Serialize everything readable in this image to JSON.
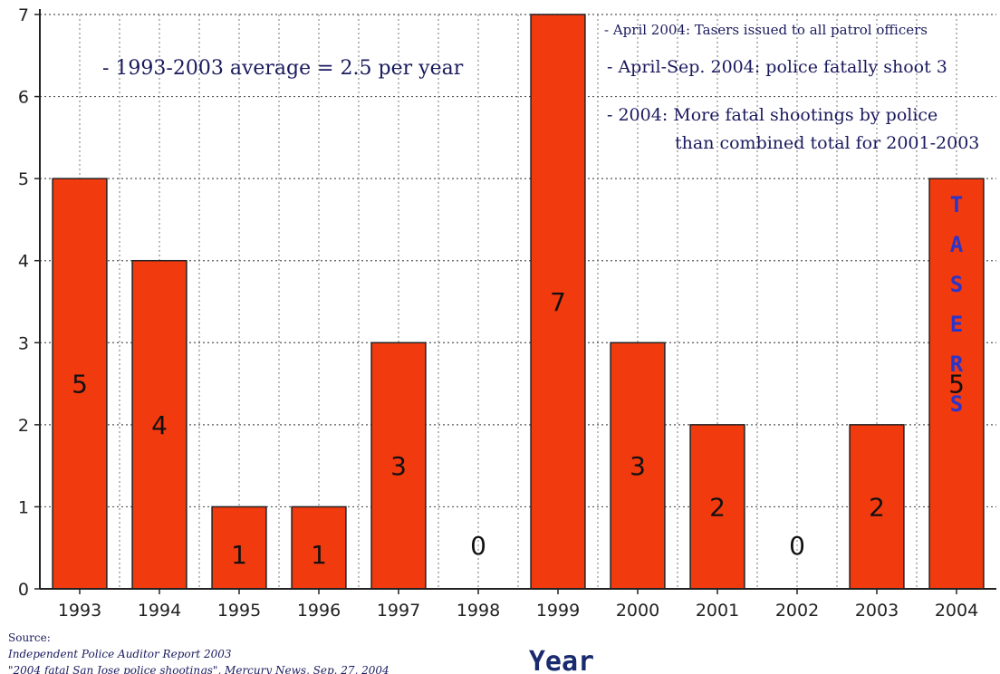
{
  "chart_data": {
    "type": "bar",
    "categories": [
      "1993",
      "1994",
      "1995",
      "1996",
      "1997",
      "1998",
      "1999",
      "2000",
      "2001",
      "2002",
      "2003",
      "2004"
    ],
    "values": [
      5,
      4,
      1,
      1,
      3,
      0,
      7,
      3,
      2,
      0,
      2,
      5
    ],
    "xlabel": "Year",
    "ylabel": "",
    "ylim": [
      0,
      7
    ],
    "yticks": [
      "0",
      "1",
      "2",
      "3",
      "4",
      "5",
      "6",
      "7"
    ],
    "grid": true,
    "bar_color": "#f23a0f",
    "annotations": {
      "average": "- 1993-2003 average = 2.5 per year",
      "note1": "- April 2004: Tasers issued to all patrol officers",
      "note2": "- April-Sep. 2004: police fatally shoot 3",
      "note3a": "- 2004: More fatal shootings by police",
      "note3b": "than combined total for 2001-2003",
      "tasers": "TASERS"
    }
  },
  "source": {
    "label": "Source:",
    "line1": "Independent Police Auditor Report 2003",
    "line2": "\"2004 fatal San Jose police shootings\", Mercury News, Sep. 27, 2004"
  }
}
